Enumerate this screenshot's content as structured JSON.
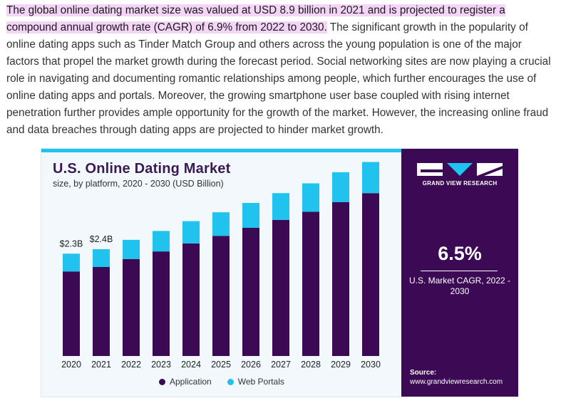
{
  "article": {
    "highlight": "The global online dating market size was valued at USD 8.9 billion in 2021 and is projected to register a compound annual growth rate (CAGR) of 6.9% from 2022 to 2030.",
    "rest": " The significant growth in the popularity of online dating apps such as Tinder Match Group and others across the young population is one of the major factors that propel the market growth during the forecast period. Social networking sites are now playing a crucial role in navigating and documenting romantic relationships among people, which further encourages the use of online dating apps and portals. Moreover, the growing smartphone user base coupled with rising internet penetration further provides ample opportunity for the growth of the market. However, the increasing online fraud and data breaches through dating apps are projected to hinder market growth."
  },
  "panel": {
    "brand": "GRAND VIEW RESEARCH",
    "cagr_value": "6.5%",
    "cagr_label": "U.S. Market CAGR, 2022 - 2030",
    "source_label": "Source:",
    "source_url": "www.grandviewresearch.com"
  },
  "colors": {
    "application": "#3c0a54",
    "web_portals": "#1fc3ee"
  },
  "chart_data": {
    "type": "bar",
    "stacked": true,
    "title": "U.S. Online Dating Market",
    "subtitle": "size, by platform, 2020 - 2030 (USD Billion)",
    "categories": [
      "2020",
      "2021",
      "2022",
      "2023",
      "2024",
      "2025",
      "2026",
      "2027",
      "2028",
      "2029",
      "2030"
    ],
    "series": [
      {
        "name": "Application",
        "values": [
          1.9,
          2.0,
          2.18,
          2.35,
          2.53,
          2.7,
          2.88,
          3.06,
          3.24,
          3.46,
          3.66
        ]
      },
      {
        "name": "Web Portals",
        "values": [
          0.4,
          0.4,
          0.43,
          0.46,
          0.5,
          0.53,
          0.56,
          0.6,
          0.64,
          0.67,
          0.7
        ]
      }
    ],
    "data_labels": [
      {
        "category": "2020",
        "text": "$2.3B"
      },
      {
        "category": "2021",
        "text": "$2.4B"
      }
    ],
    "ylim": [
      0,
      4.4
    ],
    "grid": false,
    "legend": "bottom"
  }
}
